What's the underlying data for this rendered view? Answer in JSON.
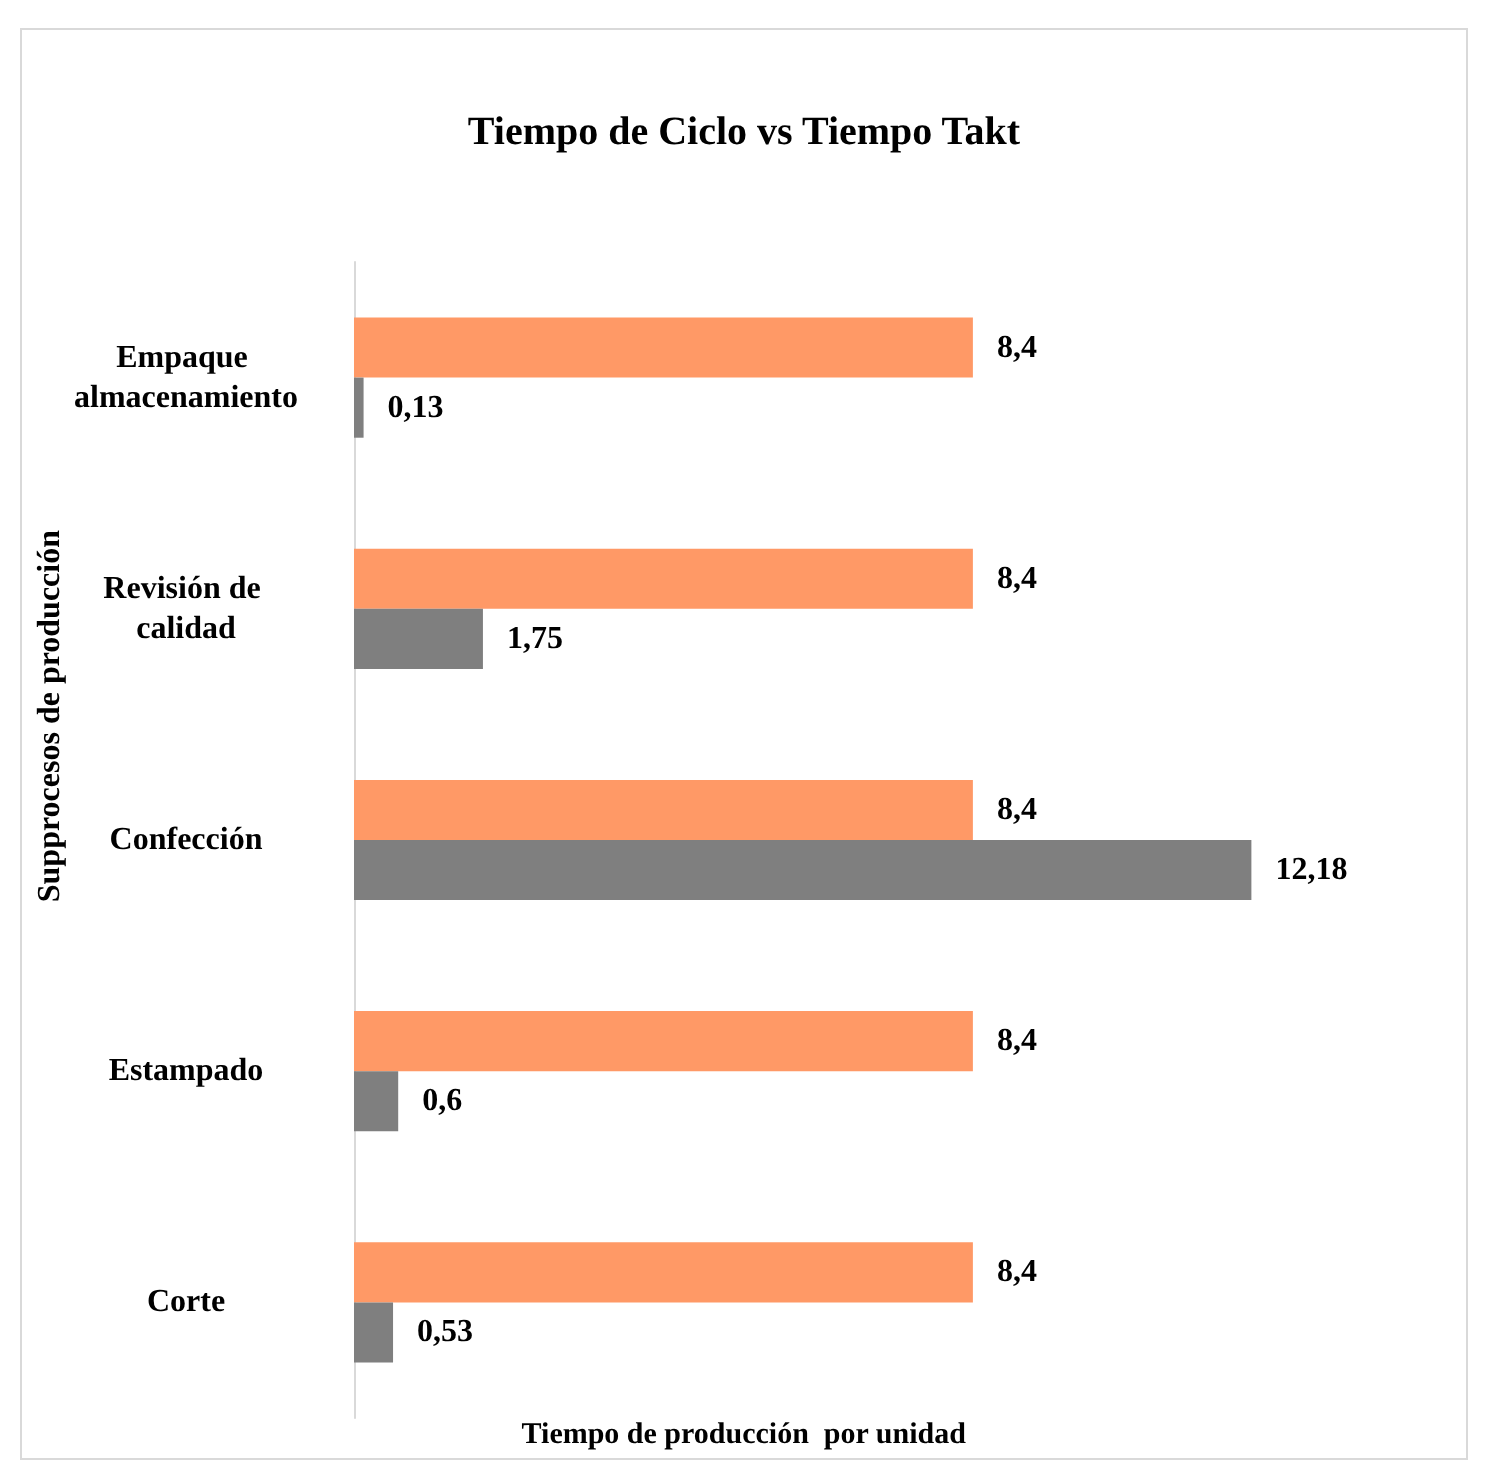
{
  "chart_data": {
    "type": "bar",
    "orientation": "horizontal",
    "title": "Tiempo de Ciclo vs Tiempo Takt",
    "xlabel": "Tiempo de producción  por unidad",
    "ylabel": "Supprocesos de producción",
    "categories": [
      "Empaque almacenamiento",
      "Revisión de calidad",
      "Confección",
      "Estampado",
      "Corte"
    ],
    "series": [
      {
        "color": "#ff9966",
        "values": [
          8.4,
          8.4,
          8.4,
          8.4,
          8.4
        ],
        "value_labels": [
          "8,4",
          "8,4",
          "8,4",
          "8,4",
          "8,4"
        ]
      },
      {
        "color": "#7f7f7f",
        "values": [
          0.13,
          1.75,
          12.18,
          0.6,
          0.53
        ],
        "value_labels": [
          "0,13",
          "1,75",
          "12,18",
          "0,6",
          "0,53"
        ]
      }
    ]
  }
}
